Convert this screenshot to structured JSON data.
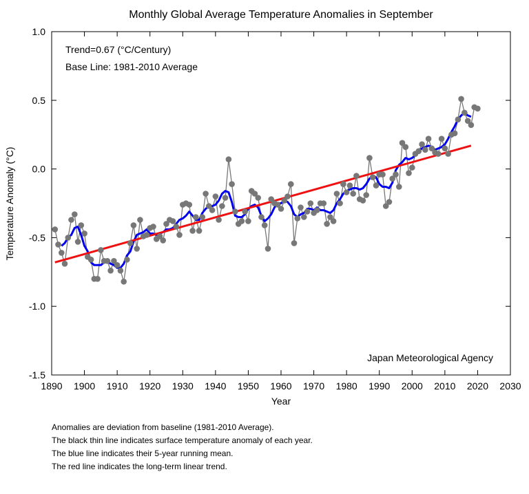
{
  "chart_data": {
    "type": "line",
    "title": "Monthly Global Average Temperature Anomalies in September",
    "xlabel": "Year",
    "ylabel": "Temperature Anomaly (°C)",
    "xlim": [
      1890,
      2030
    ],
    "ylim": [
      -1.5,
      1.0
    ],
    "xticks": [
      "1890",
      "1900",
      "1910",
      "1920",
      "1930",
      "1940",
      "1950",
      "1960",
      "1970",
      "1980",
      "1990",
      "2000",
      "2010",
      "2020",
      "2030"
    ],
    "yticks": [
      "-1.5",
      "-1.0",
      "-0.5",
      "0.0",
      "0.5",
      "1.0"
    ],
    "grid": false,
    "annotations": {
      "trend": "Trend=0.67 (°C/Century)",
      "baseline": "Base Line: 1981-2010 Average",
      "source": "Japan Meteorological Agency"
    },
    "colors": {
      "anomaly": "#777777",
      "running_mean": "#0000ee",
      "trend": "#ee1111"
    },
    "series": [
      {
        "x": [
          1891,
          1892,
          1893,
          1894,
          1895,
          1896,
          1897,
          1898,
          1899,
          1900,
          1901,
          1902,
          1903,
          1904,
          1905,
          1906,
          1907,
          1908,
          1909,
          1910,
          1911,
          1912,
          1913,
          1914,
          1915,
          1916,
          1917,
          1918,
          1919,
          1920,
          1921,
          1922,
          1923,
          1924,
          1925,
          1926,
          1927,
          1928,
          1929,
          1930,
          1931,
          1932,
          1933,
          1934,
          1935,
          1936,
          1937,
          1938,
          1939,
          1940,
          1941,
          1942,
          1943,
          1944,
          1945,
          1946,
          1947,
          1948,
          1949,
          1950,
          1951,
          1952,
          1953,
          1954,
          1955,
          1956,
          1957,
          1958,
          1959,
          1960,
          1961,
          1962,
          1963,
          1964,
          1965,
          1966,
          1967,
          1968,
          1969,
          1970,
          1971,
          1972,
          1973,
          1974,
          1975,
          1976,
          1977,
          1978,
          1979,
          1980,
          1981,
          1982,
          1983,
          1984,
          1985,
          1986,
          1987,
          1988,
          1989,
          1990,
          1991,
          1992,
          1993,
          1994,
          1995,
          1996,
          1997,
          1998,
          1999,
          2000,
          2001,
          2002,
          2003,
          2004,
          2005,
          2006,
          2007,
          2008,
          2009,
          2010,
          2011,
          2012,
          2013,
          2014,
          2015,
          2016,
          2017,
          2018,
          2019,
          2020
        ],
        "values": [
          -0.44,
          -0.55,
          -0.61,
          -0.69,
          -0.5,
          -0.37,
          -0.33,
          -0.53,
          -0.41,
          -0.47,
          -0.64,
          -0.66,
          -0.8,
          -0.8,
          -0.59,
          -0.67,
          -0.67,
          -0.74,
          -0.67,
          -0.7,
          -0.74,
          -0.82,
          -0.66,
          -0.54,
          -0.41,
          -0.58,
          -0.37,
          -0.49,
          -0.48,
          -0.43,
          -0.42,
          -0.51,
          -0.49,
          -0.52,
          -0.4,
          -0.37,
          -0.38,
          -0.42,
          -0.48,
          -0.26,
          -0.25,
          -0.26,
          -0.45,
          -0.35,
          -0.45,
          -0.35,
          -0.18,
          -0.27,
          -0.3,
          -0.2,
          -0.37,
          -0.27,
          -0.21,
          0.07,
          -0.11,
          -0.31,
          -0.4,
          -0.38,
          -0.31,
          -0.38,
          -0.16,
          -0.18,
          -0.21,
          -0.35,
          -0.41,
          -0.58,
          -0.22,
          -0.25,
          -0.26,
          -0.29,
          -0.23,
          -0.2,
          -0.11,
          -0.54,
          -0.36,
          -0.28,
          -0.35,
          -0.31,
          -0.25,
          -0.32,
          -0.3,
          -0.25,
          -0.25,
          -0.4,
          -0.35,
          -0.38,
          -0.18,
          -0.25,
          -0.11,
          -0.17,
          -0.12,
          -0.18,
          -0.05,
          -0.22,
          -0.23,
          -0.19,
          0.08,
          -0.06,
          -0.12,
          -0.04,
          -0.04,
          -0.27,
          -0.24,
          -0.07,
          -0.04,
          -0.13,
          0.19,
          0.16,
          -0.03,
          0.01,
          0.11,
          0.13,
          0.18,
          0.14,
          0.22,
          0.15,
          0.12,
          0.11,
          0.22,
          0.15,
          0.11,
          0.25,
          0.26,
          0.36,
          0.51,
          0.41,
          0.35,
          0.32,
          0.45,
          0.44
        ]
      },
      {
        "x": [
          1893,
          1894,
          1895,
          1896,
          1897,
          1898,
          1899,
          1900,
          1901,
          1902,
          1903,
          1904,
          1905,
          1906,
          1907,
          1908,
          1909,
          1910,
          1911,
          1912,
          1913,
          1914,
          1915,
          1916,
          1917,
          1918,
          1919,
          1920,
          1921,
          1922,
          1923,
          1924,
          1925,
          1926,
          1927,
          1928,
          1929,
          1930,
          1931,
          1932,
          1933,
          1934,
          1935,
          1936,
          1937,
          1938,
          1939,
          1940,
          1941,
          1942,
          1943,
          1944,
          1945,
          1946,
          1947,
          1948,
          1949,
          1950,
          1951,
          1952,
          1953,
          1954,
          1955,
          1956,
          1957,
          1958,
          1959,
          1960,
          1961,
          1962,
          1963,
          1964,
          1965,
          1966,
          1967,
          1968,
          1969,
          1970,
          1971,
          1972,
          1973,
          1974,
          1975,
          1976,
          1977,
          1978,
          1979,
          1980,
          1981,
          1982,
          1983,
          1984,
          1985,
          1986,
          1987,
          1988,
          1989,
          1990,
          1991,
          1992,
          1993,
          1994,
          1995,
          1996,
          1997,
          1998,
          1999,
          2000,
          2001,
          2002,
          2003,
          2004,
          2005,
          2006,
          2007,
          2008,
          2009,
          2010,
          2011,
          2012,
          2013,
          2014,
          2015,
          2016,
          2017,
          2018
        ],
        "values": [
          -0.56,
          -0.54,
          -0.5,
          -0.48,
          -0.43,
          -0.42,
          -0.48,
          -0.56,
          -0.6,
          -0.68,
          -0.7,
          -0.7,
          -0.7,
          -0.68,
          -0.67,
          -0.69,
          -0.7,
          -0.72,
          -0.72,
          -0.69,
          -0.63,
          -0.6,
          -0.53,
          -0.48,
          -0.47,
          -0.46,
          -0.44,
          -0.47,
          -0.47,
          -0.48,
          -0.47,
          -0.46,
          -0.44,
          -0.44,
          -0.43,
          -0.4,
          -0.37,
          -0.36,
          -0.34,
          -0.31,
          -0.34,
          -0.37,
          -0.37,
          -0.32,
          -0.29,
          -0.27,
          -0.27,
          -0.26,
          -0.23,
          -0.18,
          -0.16,
          -0.17,
          -0.24,
          -0.34,
          -0.35,
          -0.35,
          -0.33,
          -0.29,
          -0.27,
          -0.26,
          -0.28,
          -0.34,
          -0.38,
          -0.36,
          -0.33,
          -0.28,
          -0.25,
          -0.25,
          -0.23,
          -0.24,
          -0.27,
          -0.33,
          -0.35,
          -0.33,
          -0.32,
          -0.29,
          -0.29,
          -0.3,
          -0.28,
          -0.3,
          -0.3,
          -0.31,
          -0.32,
          -0.3,
          -0.25,
          -0.22,
          -0.18,
          -0.16,
          -0.15,
          -0.14,
          -0.14,
          -0.15,
          -0.14,
          -0.11,
          -0.07,
          -0.05,
          -0.06,
          -0.11,
          -0.13,
          -0.13,
          -0.14,
          -0.1,
          -0.01,
          0.03,
          0.05,
          0.08,
          0.07,
          0.08,
          0.1,
          0.13,
          0.15,
          0.16,
          0.17,
          0.16,
          0.14,
          0.15,
          0.16,
          0.18,
          0.22,
          0.27,
          0.31,
          0.36,
          0.39,
          0.41,
          0.39,
          0.38
        ]
      },
      {
        "x": [
          1891,
          2018
        ],
        "values": [
          -0.68,
          0.17
        ]
      }
    ]
  },
  "notes": [
    "Anomalies are deviation from baseline (1981-2010 Average).",
    "The black thin line indicates surface temperature anomaly of each year.",
    "The blue line indicates their 5-year running mean.",
    "The red line indicates the long-term linear trend."
  ]
}
